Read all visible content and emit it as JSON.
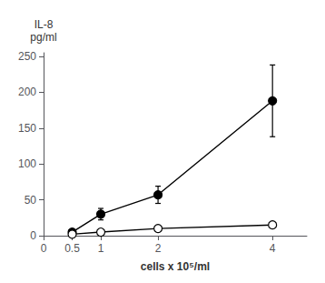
{
  "chart_data": {
    "type": "line",
    "x": [
      0.5,
      1.0,
      2.0,
      4.0
    ],
    "series": [
      {
        "values": [
          5,
          30,
          57,
          188
        ],
        "yerr": [
          2,
          8,
          12,
          50
        ],
        "color": "#000000",
        "marker": "filled"
      },
      {
        "values": [
          2,
          5,
          10,
          15
        ],
        "yerr": [
          1,
          1,
          1,
          4
        ],
        "color": "#000000",
        "marker": "open"
      }
    ],
    "xlabel": "cells x 10⁵/ml",
    "ylabel": "IL-8\npg/ml",
    "xlim": [
      0,
      4.6
    ],
    "ylim": [
      0,
      255
    ],
    "xticks": [
      0,
      0.5,
      1,
      2,
      4
    ],
    "yticks": [
      0,
      50,
      100,
      150,
      200,
      250
    ],
    "grid": false
  }
}
